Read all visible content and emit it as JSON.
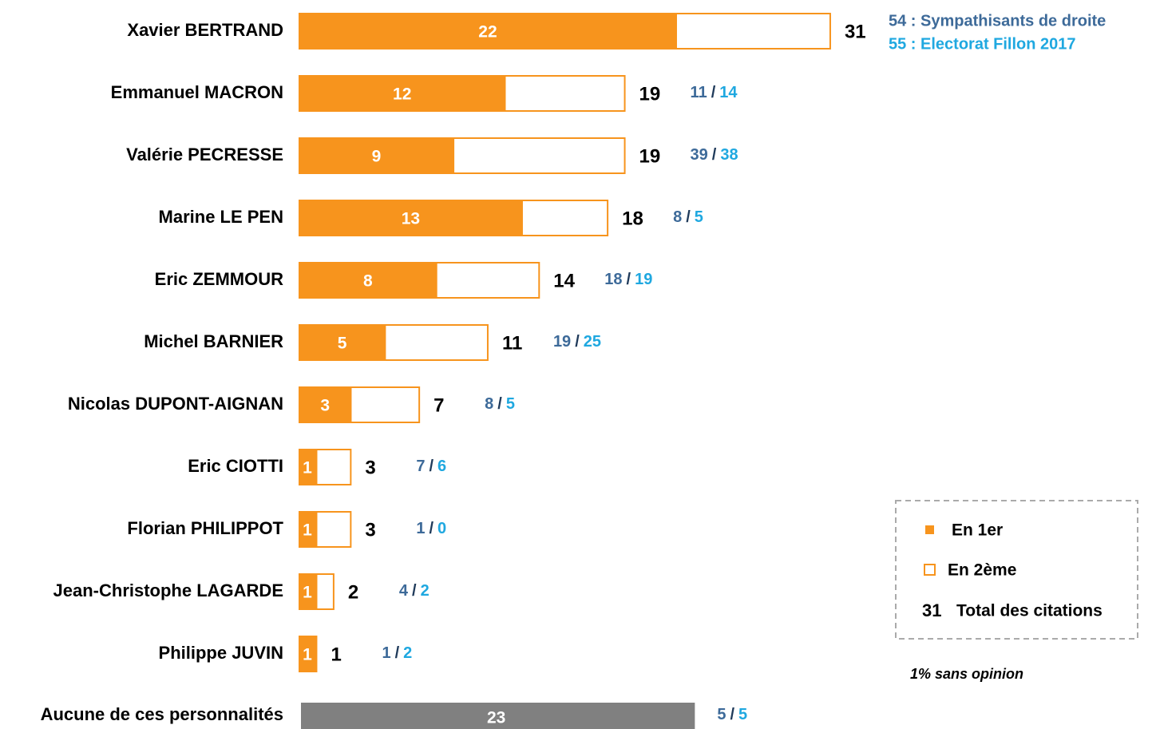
{
  "chart_data": {
    "type": "stacked-bar-horizontal",
    "categories": [
      "Xavier BERTRAND",
      "Emmanuel MACRON",
      "Valérie PECRESSE",
      "Marine LE PEN",
      "Eric ZEMMOUR",
      "Michel BARNIER",
      "Nicolas DUPONT-AIGNAN",
      "Eric CIOTTI",
      "Florian PHILIPPOT",
      "Jean-Christophe LAGARDE",
      "Philippe JUVIN"
    ],
    "series": [
      {
        "name": "En 1er",
        "color": "#f7941d",
        "values": [
          22,
          12,
          9,
          13,
          8,
          5,
          3,
          1,
          1,
          1,
          1
        ]
      },
      {
        "name": "En 2ème",
        "color": "#ffffff",
        "values": [
          9,
          7,
          10,
          5,
          6,
          6,
          4,
          2,
          2,
          1,
          0
        ]
      }
    ],
    "totals": [
      31,
      19,
      19,
      18,
      14,
      11,
      7,
      3,
      3,
      2,
      1
    ],
    "total_legend": {
      "sample": "31",
      "label": "Total des citations"
    },
    "other": {
      "label": "Aucune de ces personnalités",
      "value": 23,
      "color": "#808080",
      "subgroups": [
        5,
        5
      ]
    },
    "subgroups": {
      "names": [
        "54 : Sympathisants de droite",
        "55 : Electorat Fillon 2017"
      ],
      "colors": [
        "#3d6a99",
        "#1fa8e0"
      ],
      "separator": "/",
      "values": [
        [
          null,
          null
        ],
        [
          11,
          14
        ],
        [
          39,
          38
        ],
        [
          8,
          5
        ],
        [
          18,
          19
        ],
        [
          19,
          25
        ],
        [
          8,
          5
        ],
        [
          7,
          6
        ],
        [
          1,
          0
        ],
        [
          4,
          2
        ],
        [
          1,
          2
        ]
      ]
    },
    "note": "1% sans opinion"
  }
}
